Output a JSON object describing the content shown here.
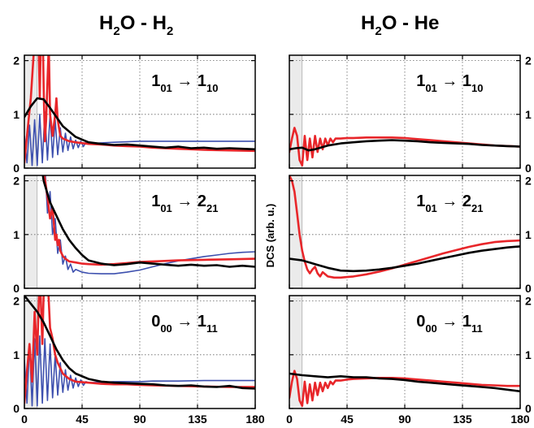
{
  "figure": {
    "col_titles": [
      {
        "main": [
          "H",
          "O - H",
          ""
        ],
        "subs": [
          "2",
          "2"
        ]
      },
      {
        "main": [
          "H",
          "O - He"
        ],
        "subs": [
          "2"
        ]
      }
    ],
    "ylabel": "DCS (arb. u.)",
    "colors": {
      "black_series": "#000000",
      "red_series": "#e8262a",
      "blue_series": "#3c4fae",
      "shade": "#ebebeb"
    }
  },
  "chart_data": [
    {
      "type": "line",
      "panel": "H2O-H2 row1",
      "transition": {
        "a": "1",
        "a_sub": "01",
        "arrow": "→",
        "b": "1",
        "b_sub": "10"
      },
      "xlim": [
        0,
        180
      ],
      "ylim": [
        0,
        2.1
      ],
      "xticks": [
        "0",
        "45",
        "90",
        "135",
        "180"
      ],
      "yticks": [
        "0",
        "1",
        "2"
      ],
      "shaded_x": [
        0,
        10
      ],
      "grid": true,
      "series": [
        {
          "color": "black",
          "x": [
            0,
            5,
            10,
            15,
            20,
            25,
            30,
            40,
            50,
            60,
            70,
            80,
            90,
            100,
            110,
            120,
            130,
            140,
            150,
            160,
            170,
            180
          ],
          "y": [
            0.95,
            1.15,
            1.3,
            1.28,
            1.12,
            0.95,
            0.78,
            0.58,
            0.48,
            0.45,
            0.43,
            0.44,
            0.42,
            0.4,
            0.38,
            0.4,
            0.37,
            0.38,
            0.36,
            0.37,
            0.36,
            0.35
          ]
        },
        {
          "color": "red",
          "x": [
            0,
            2,
            5,
            8,
            10,
            11,
            12,
            13,
            14,
            15,
            16,
            17,
            18,
            19,
            20,
            22,
            24,
            25,
            26,
            28,
            30,
            35,
            40,
            50,
            60,
            70,
            80,
            90,
            100,
            120,
            140,
            160,
            180
          ],
          "y": [
            0.1,
            0.6,
            1.3,
            2.4,
            3.0,
            2.4,
            1.3,
            2.6,
            3.0,
            1.5,
            0.5,
            0.9,
            1.6,
            2.3,
            1.0,
            0.6,
            1.0,
            1.3,
            0.9,
            0.6,
            0.55,
            0.5,
            0.48,
            0.45,
            0.44,
            0.42,
            0.41,
            0.4,
            0.38,
            0.36,
            0.34,
            0.33,
            0.32
          ]
        },
        {
          "color": "blue",
          "x": [
            0,
            2,
            4,
            6,
            8,
            10,
            12,
            14,
            16,
            18,
            20,
            22,
            24,
            26,
            28,
            30,
            32,
            34,
            36,
            38,
            40,
            42,
            44,
            46,
            48,
            50,
            55,
            60,
            70,
            80,
            90,
            100,
            120,
            140,
            160,
            180
          ],
          "y": [
            0.6,
            0.1,
            0.8,
            0.05,
            0.9,
            0.05,
            1.0,
            0.1,
            1.05,
            0.15,
            1.0,
            0.2,
            0.9,
            0.25,
            0.75,
            0.3,
            0.65,
            0.33,
            0.58,
            0.36,
            0.52,
            0.38,
            0.5,
            0.4,
            0.48,
            0.45,
            0.46,
            0.47,
            0.48,
            0.49,
            0.5,
            0.5,
            0.5,
            0.5,
            0.5,
            0.5
          ]
        }
      ]
    },
    {
      "type": "line",
      "panel": "H2O-H2 row2",
      "transition": {
        "a": "1",
        "a_sub": "01",
        "arrow": "→",
        "b": "2",
        "b_sub": "21"
      },
      "xlim": [
        0,
        180
      ],
      "ylim": [
        0,
        2.1
      ],
      "xticks": [
        "0",
        "45",
        "90",
        "135",
        "180"
      ],
      "yticks": [
        "0",
        "1",
        "2"
      ],
      "shaded_x": [
        0,
        10
      ],
      "grid": true,
      "series": [
        {
          "color": "black",
          "x": [
            12,
            15,
            20,
            25,
            30,
            35,
            40,
            45,
            50,
            60,
            70,
            80,
            90,
            100,
            110,
            120,
            130,
            140,
            150,
            160,
            170,
            180
          ],
          "y": [
            2.5,
            2.0,
            1.6,
            1.35,
            1.1,
            0.9,
            0.75,
            0.62,
            0.52,
            0.46,
            0.43,
            0.45,
            0.48,
            0.46,
            0.44,
            0.42,
            0.44,
            0.42,
            0.43,
            0.4,
            0.42,
            0.4
          ]
        },
        {
          "color": "red",
          "x": [
            13,
            15,
            18,
            20,
            22,
            23,
            24,
            25,
            26,
            27,
            28,
            30,
            32,
            35,
            40,
            45,
            50,
            60,
            70,
            80,
            90,
            100,
            120,
            140,
            160,
            180
          ],
          "y": [
            2.5,
            2.2,
            1.7,
            1.3,
            1.5,
            1.2,
            0.9,
            1.0,
            0.8,
            0.9,
            0.7,
            0.6,
            0.55,
            0.5,
            0.48,
            0.46,
            0.45,
            0.44,
            0.45,
            0.47,
            0.49,
            0.5,
            0.52,
            0.53,
            0.54,
            0.55
          ]
        },
        {
          "color": "blue",
          "x": [
            16,
            18,
            20,
            22,
            24,
            26,
            28,
            30,
            32,
            34,
            36,
            38,
            40,
            45,
            50,
            60,
            70,
            80,
            90,
            100,
            110,
            120,
            130,
            140,
            150,
            160,
            170,
            180
          ],
          "y": [
            2.3,
            1.4,
            1.8,
            1.0,
            1.3,
            0.65,
            0.9,
            0.45,
            0.6,
            0.35,
            0.45,
            0.3,
            0.35,
            0.3,
            0.28,
            0.27,
            0.27,
            0.3,
            0.34,
            0.4,
            0.46,
            0.51,
            0.55,
            0.59,
            0.62,
            0.65,
            0.67,
            0.68
          ]
        }
      ]
    },
    {
      "type": "line",
      "panel": "H2O-H2 row3",
      "transition": {
        "a": "0",
        "a_sub": "00",
        "arrow": "→",
        "b": "1",
        "b_sub": "11"
      },
      "xlim": [
        0,
        180
      ],
      "ylim": [
        0,
        2.1
      ],
      "xticks": [
        "0",
        "45",
        "90",
        "135",
        "180"
      ],
      "yticks": [
        "0",
        "1",
        "2"
      ],
      "shaded_x": [
        0,
        10
      ],
      "grid": true,
      "series": [
        {
          "color": "black",
          "x": [
            0,
            5,
            10,
            15,
            20,
            25,
            30,
            35,
            40,
            50,
            60,
            70,
            80,
            90,
            100,
            110,
            120,
            130,
            140,
            150,
            160,
            170,
            180
          ],
          "y": [
            2.1,
            1.95,
            1.8,
            1.6,
            1.35,
            1.1,
            0.9,
            0.75,
            0.65,
            0.55,
            0.5,
            0.48,
            0.47,
            0.46,
            0.45,
            0.43,
            0.42,
            0.43,
            0.41,
            0.4,
            0.42,
            0.38,
            0.37
          ]
        },
        {
          "color": "red",
          "x": [
            0,
            2,
            4,
            6,
            8,
            10,
            12,
            14,
            16,
            18,
            20,
            22,
            24,
            26,
            28,
            30,
            35,
            40,
            50,
            60,
            70,
            80,
            90,
            100,
            120,
            140,
            160,
            180
          ],
          "y": [
            0.1,
            0.7,
            1.2,
            0.5,
            1.8,
            1.0,
            2.6,
            1.2,
            3.0,
            2.5,
            1.5,
            1.3,
            1.0,
            0.85,
            0.75,
            0.65,
            0.55,
            0.5,
            0.48,
            0.46,
            0.45,
            0.45,
            0.44,
            0.43,
            0.42,
            0.41,
            0.4,
            0.4
          ]
        },
        {
          "color": "blue",
          "x": [
            0,
            2,
            4,
            6,
            8,
            10,
            12,
            14,
            16,
            18,
            20,
            22,
            24,
            26,
            28,
            30,
            32,
            34,
            36,
            38,
            40,
            42,
            44,
            46,
            48,
            50,
            60,
            70,
            80,
            90,
            100,
            120,
            140,
            160,
            180
          ],
          "y": [
            0.9,
            0.1,
            1.2,
            0.05,
            1.3,
            0.05,
            1.35,
            0.1,
            1.3,
            0.15,
            1.2,
            0.2,
            1.0,
            0.25,
            0.85,
            0.3,
            0.72,
            0.34,
            0.62,
            0.38,
            0.57,
            0.41,
            0.53,
            0.43,
            0.5,
            0.48,
            0.49,
            0.5,
            0.5,
            0.5,
            0.51,
            0.51,
            0.52,
            0.52,
            0.52
          ]
        }
      ]
    },
    {
      "type": "line",
      "panel": "H2O-He row1",
      "transition": {
        "a": "1",
        "a_sub": "01",
        "arrow": "→",
        "b": "1",
        "b_sub": "10"
      },
      "xlim": [
        0,
        180
      ],
      "ylim": [
        0,
        2.1
      ],
      "xticks": [
        "0",
        "45",
        "90",
        "135",
        "180"
      ],
      "yticks": [
        "0",
        "1",
        "2"
      ],
      "shaded_x": [
        0,
        10
      ],
      "grid": true,
      "series": [
        {
          "color": "black",
          "x": [
            0,
            5,
            10,
            15,
            20,
            30,
            40,
            50,
            60,
            70,
            80,
            90,
            100,
            110,
            120,
            130,
            140,
            150,
            160,
            170,
            180
          ],
          "y": [
            0.35,
            0.37,
            0.38,
            0.33,
            0.35,
            0.42,
            0.46,
            0.48,
            0.5,
            0.51,
            0.52,
            0.51,
            0.5,
            0.48,
            0.47,
            0.46,
            0.45,
            0.43,
            0.42,
            0.41,
            0.4
          ]
        },
        {
          "color": "red",
          "x": [
            0,
            2,
            4,
            6,
            8,
            10,
            12,
            14,
            16,
            18,
            20,
            22,
            24,
            26,
            28,
            30,
            32,
            34,
            36,
            40,
            45,
            50,
            60,
            70,
            80,
            90,
            100,
            110,
            120,
            140,
            160,
            180
          ],
          "y": [
            0.3,
            0.55,
            0.75,
            0.6,
            0.15,
            0.05,
            0.6,
            0.15,
            0.55,
            0.2,
            0.6,
            0.3,
            0.55,
            0.35,
            0.55,
            0.42,
            0.55,
            0.48,
            0.55,
            0.55,
            0.56,
            0.56,
            0.57,
            0.57,
            0.57,
            0.56,
            0.54,
            0.52,
            0.5,
            0.46,
            0.42,
            0.4
          ]
        }
      ]
    },
    {
      "type": "line",
      "panel": "H2O-He row2",
      "transition": {
        "a": "1",
        "a_sub": "01",
        "arrow": "→",
        "b": "2",
        "b_sub": "21"
      },
      "xlim": [
        0,
        180
      ],
      "ylim": [
        0,
        2.1
      ],
      "xticks": [
        "0",
        "45",
        "90",
        "135",
        "180"
      ],
      "yticks": [
        "0",
        "1",
        "2"
      ],
      "shaded_x": [
        0,
        10
      ],
      "grid": true,
      "series": [
        {
          "color": "black",
          "x": [
            0,
            10,
            20,
            30,
            40,
            50,
            60,
            70,
            80,
            90,
            100,
            110,
            120,
            130,
            140,
            150,
            160,
            170,
            180
          ],
          "y": [
            0.55,
            0.52,
            0.45,
            0.38,
            0.33,
            0.32,
            0.33,
            0.35,
            0.38,
            0.42,
            0.46,
            0.51,
            0.56,
            0.61,
            0.66,
            0.7,
            0.73,
            0.76,
            0.78
          ]
        },
        {
          "color": "red",
          "x": [
            0,
            2,
            4,
            6,
            8,
            10,
            12,
            14,
            16,
            18,
            20,
            22,
            24,
            26,
            28,
            30,
            35,
            40,
            45,
            50,
            60,
            70,
            80,
            90,
            100,
            110,
            120,
            130,
            140,
            150,
            160,
            170,
            180
          ],
          "y": [
            2.1,
            2.0,
            1.8,
            1.4,
            1.0,
            0.7,
            0.5,
            0.35,
            0.28,
            0.35,
            0.4,
            0.28,
            0.22,
            0.3,
            0.26,
            0.22,
            0.2,
            0.2,
            0.21,
            0.22,
            0.26,
            0.31,
            0.37,
            0.44,
            0.51,
            0.58,
            0.65,
            0.71,
            0.77,
            0.82,
            0.86,
            0.88,
            0.89
          ]
        }
      ]
    },
    {
      "type": "line",
      "panel": "H2O-He row3",
      "transition": {
        "a": "0",
        "a_sub": "00",
        "arrow": "→",
        "b": "1",
        "b_sub": "11"
      },
      "xlim": [
        0,
        180
      ],
      "ylim": [
        0,
        2.1
      ],
      "xticks": [
        "0",
        "45",
        "90",
        "135",
        "180"
      ],
      "yticks": [
        "0",
        "1",
        "2"
      ],
      "shaded_x": [
        0,
        10
      ],
      "grid": true,
      "series": [
        {
          "color": "black",
          "x": [
            0,
            10,
            20,
            30,
            40,
            50,
            60,
            70,
            80,
            90,
            100,
            110,
            120,
            130,
            140,
            150,
            160,
            170,
            180
          ],
          "y": [
            0.65,
            0.62,
            0.6,
            0.58,
            0.6,
            0.58,
            0.58,
            0.56,
            0.55,
            0.53,
            0.5,
            0.48,
            0.46,
            0.44,
            0.42,
            0.4,
            0.38,
            0.35,
            0.32
          ]
        },
        {
          "color": "red",
          "x": [
            0,
            2,
            4,
            6,
            8,
            10,
            12,
            14,
            16,
            18,
            20,
            22,
            24,
            26,
            28,
            30,
            32,
            34,
            36,
            40,
            45,
            50,
            60,
            70,
            80,
            90,
            100,
            110,
            120,
            130,
            140,
            150,
            160,
            170,
            180
          ],
          "y": [
            0.2,
            0.5,
            0.7,
            0.55,
            0.15,
            0.05,
            0.5,
            0.1,
            0.45,
            0.15,
            0.48,
            0.25,
            0.48,
            0.32,
            0.48,
            0.38,
            0.5,
            0.45,
            0.52,
            0.52,
            0.54,
            0.55,
            0.56,
            0.57,
            0.57,
            0.56,
            0.54,
            0.52,
            0.5,
            0.48,
            0.46,
            0.44,
            0.43,
            0.42,
            0.42
          ]
        }
      ]
    }
  ]
}
